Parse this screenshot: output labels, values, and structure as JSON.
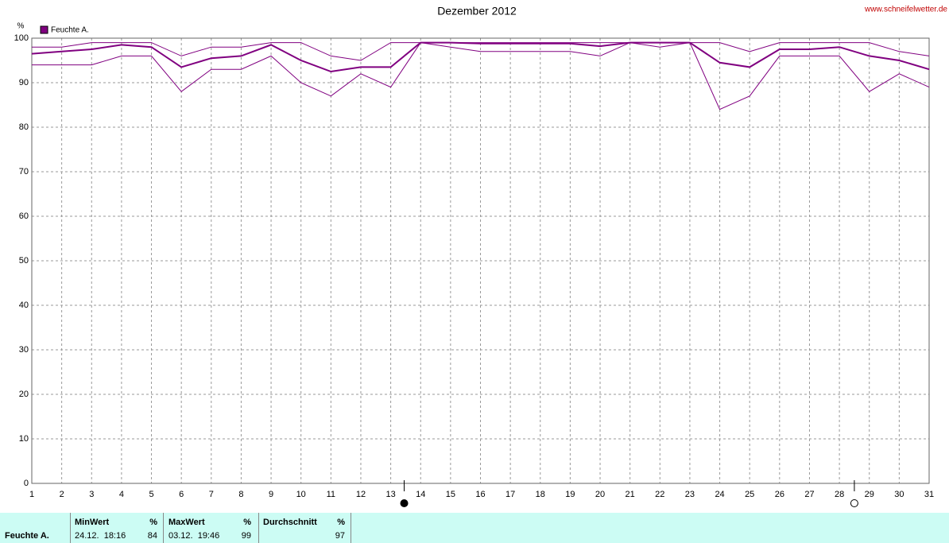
{
  "chart_data": {
    "type": "line",
    "title": "Dezember 2012",
    "ylabel": "%",
    "watermark": "www.schneifelwetter.de",
    "x": [
      1,
      2,
      3,
      4,
      5,
      6,
      7,
      8,
      9,
      10,
      11,
      12,
      13,
      14,
      15,
      16,
      17,
      18,
      19,
      20,
      21,
      22,
      23,
      24,
      25,
      26,
      27,
      28,
      29,
      30,
      31
    ],
    "series": [
      {
        "name": "Feuchte A.",
        "color": "#800080",
        "width": 2,
        "values": [
          96.5,
          97,
          97.5,
          98.5,
          98,
          93.5,
          95.5,
          96,
          98.5,
          95,
          92.5,
          93.5,
          93.5,
          99,
          99,
          98.8,
          98.8,
          98.8,
          98.8,
          98.2,
          99,
          99,
          99,
          94.5,
          93.5,
          97.5,
          97.5,
          98,
          96,
          95,
          93
        ]
      },
      {
        "color": "#800080",
        "width": 1,
        "values": [
          98,
          98,
          99,
          99,
          99,
          96,
          98,
          98,
          99,
          99,
          96,
          95,
          99,
          99,
          99,
          99,
          99,
          99,
          99,
          99,
          99,
          99,
          99,
          99,
          97,
          99,
          99,
          99,
          99,
          97,
          96
        ]
      },
      {
        "color": "#800080",
        "width": 1,
        "values": [
          94,
          94,
          94,
          96,
          96,
          88,
          93,
          93,
          96,
          90,
          87,
          92,
          89,
          99,
          98,
          97,
          97,
          97,
          97,
          96,
          99,
          98,
          99,
          84,
          87,
          96,
          96,
          96,
          88,
          92,
          89
        ]
      }
    ],
    "xlim": [
      1,
      31
    ],
    "xticks": [
      1,
      2,
      3,
      4,
      5,
      6,
      7,
      8,
      9,
      10,
      11,
      12,
      13,
      14,
      15,
      16,
      17,
      18,
      19,
      20,
      21,
      22,
      23,
      24,
      25,
      26,
      27,
      28,
      29,
      30,
      31
    ],
    "ylim": [
      0,
      100
    ],
    "yticks": [
      0,
      10,
      20,
      30,
      40,
      50,
      60,
      70,
      80,
      90,
      100
    ],
    "grid": true,
    "new_moon_x": 13.45,
    "full_moon_x": 28.5
  },
  "table": {
    "columns": [
      "MinWert",
      "%",
      "MaxWert",
      "%",
      "Durchschnitt",
      "%"
    ],
    "rows": [
      [
        "Feuchte A.",
        "24.12.  18:16",
        84,
        "03.12.  19:46",
        99,
        97
      ]
    ]
  }
}
